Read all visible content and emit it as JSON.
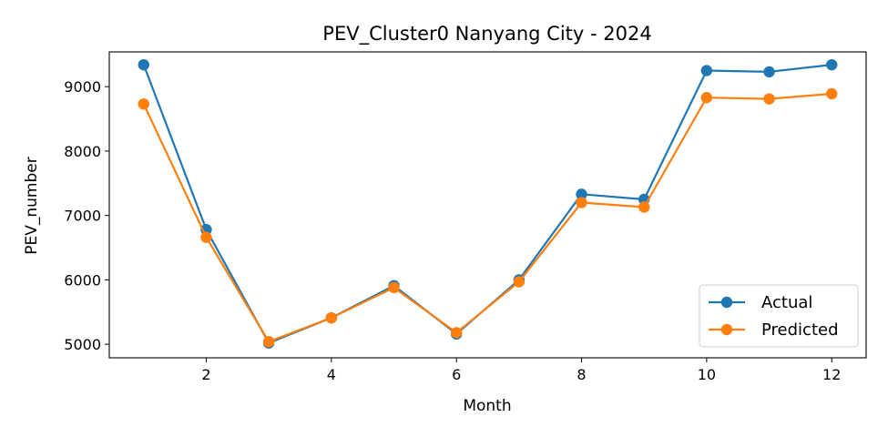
{
  "chart_data": {
    "type": "line",
    "title": "PEV_Cluster0 Nanyang City - 2024",
    "xlabel": "Month",
    "ylabel": "PEV_number",
    "x": [
      1,
      2,
      3,
      4,
      5,
      6,
      7,
      8,
      9,
      10,
      11,
      12
    ],
    "xlim": [
      0.45,
      12.55
    ],
    "ylim": [
      4790,
      9540
    ],
    "xticks": [
      2,
      4,
      6,
      8,
      10,
      12
    ],
    "yticks": [
      5000,
      6000,
      7000,
      8000,
      9000
    ],
    "grid": false,
    "legend_position": "lower-right",
    "series": [
      {
        "name": "Actual",
        "color": "#1f77b4",
        "values": [
          9340,
          6780,
          5020,
          5410,
          5910,
          5160,
          6000,
          7330,
          7250,
          9250,
          9230,
          9340
        ]
      },
      {
        "name": "Predicted",
        "color": "#ff7f0e",
        "values": [
          8730,
          6660,
          5040,
          5410,
          5880,
          5180,
          5970,
          7200,
          7130,
          8830,
          8810,
          8890
        ]
      }
    ]
  }
}
